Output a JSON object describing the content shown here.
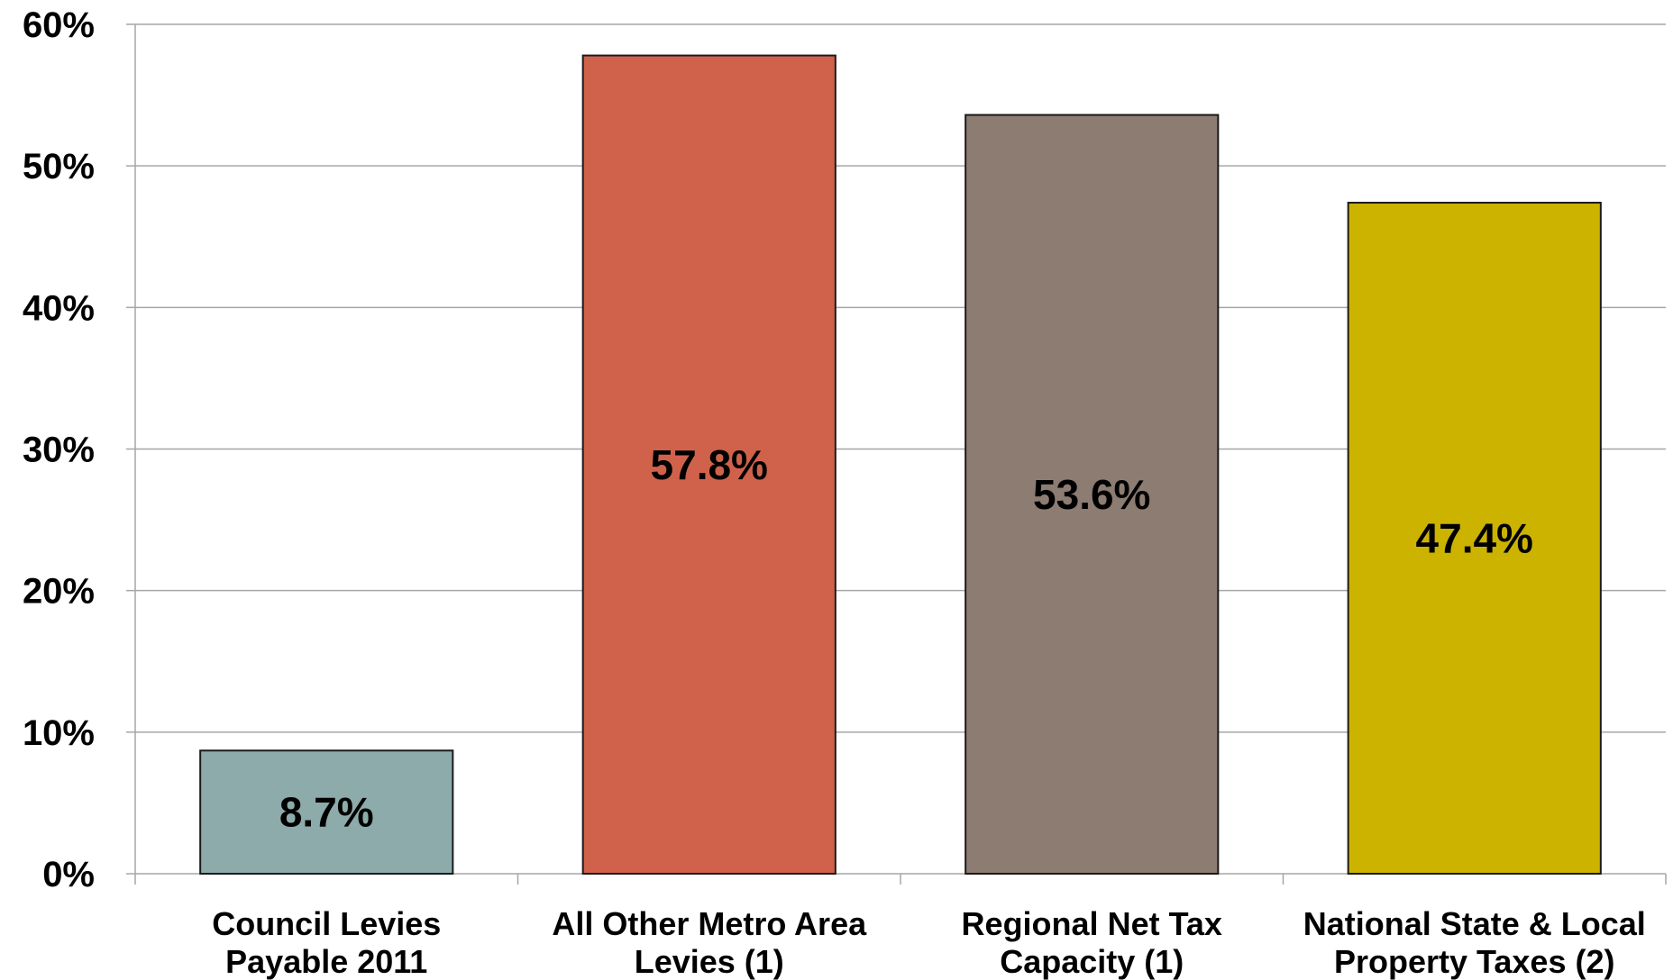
{
  "chart_data": {
    "type": "bar",
    "categories": [
      [
        "Council Levies",
        "Payable 2011"
      ],
      [
        "All Other Metro Area",
        "Levies (1)"
      ],
      [
        "Regional Net Tax",
        "Capacity (1)"
      ],
      [
        "National State & Local",
        "Property Taxes (2)"
      ]
    ],
    "values": [
      8.7,
      57.8,
      53.6,
      47.4
    ],
    "data_labels": [
      "8.7%",
      "57.8%",
      "53.6%",
      "47.4%"
    ],
    "colors": [
      "#8cabaa",
      "#d0624b",
      "#8c7c72",
      "#ccb300"
    ],
    "ylim": [
      0,
      60
    ],
    "yticks": [
      0,
      10,
      20,
      30,
      40,
      50,
      60
    ],
    "ytick_labels": [
      "0%",
      "10%",
      "20%",
      "30%",
      "40%",
      "50%",
      "60%"
    ],
    "grid": true,
    "title": "",
    "xlabel": "",
    "ylabel": ""
  }
}
